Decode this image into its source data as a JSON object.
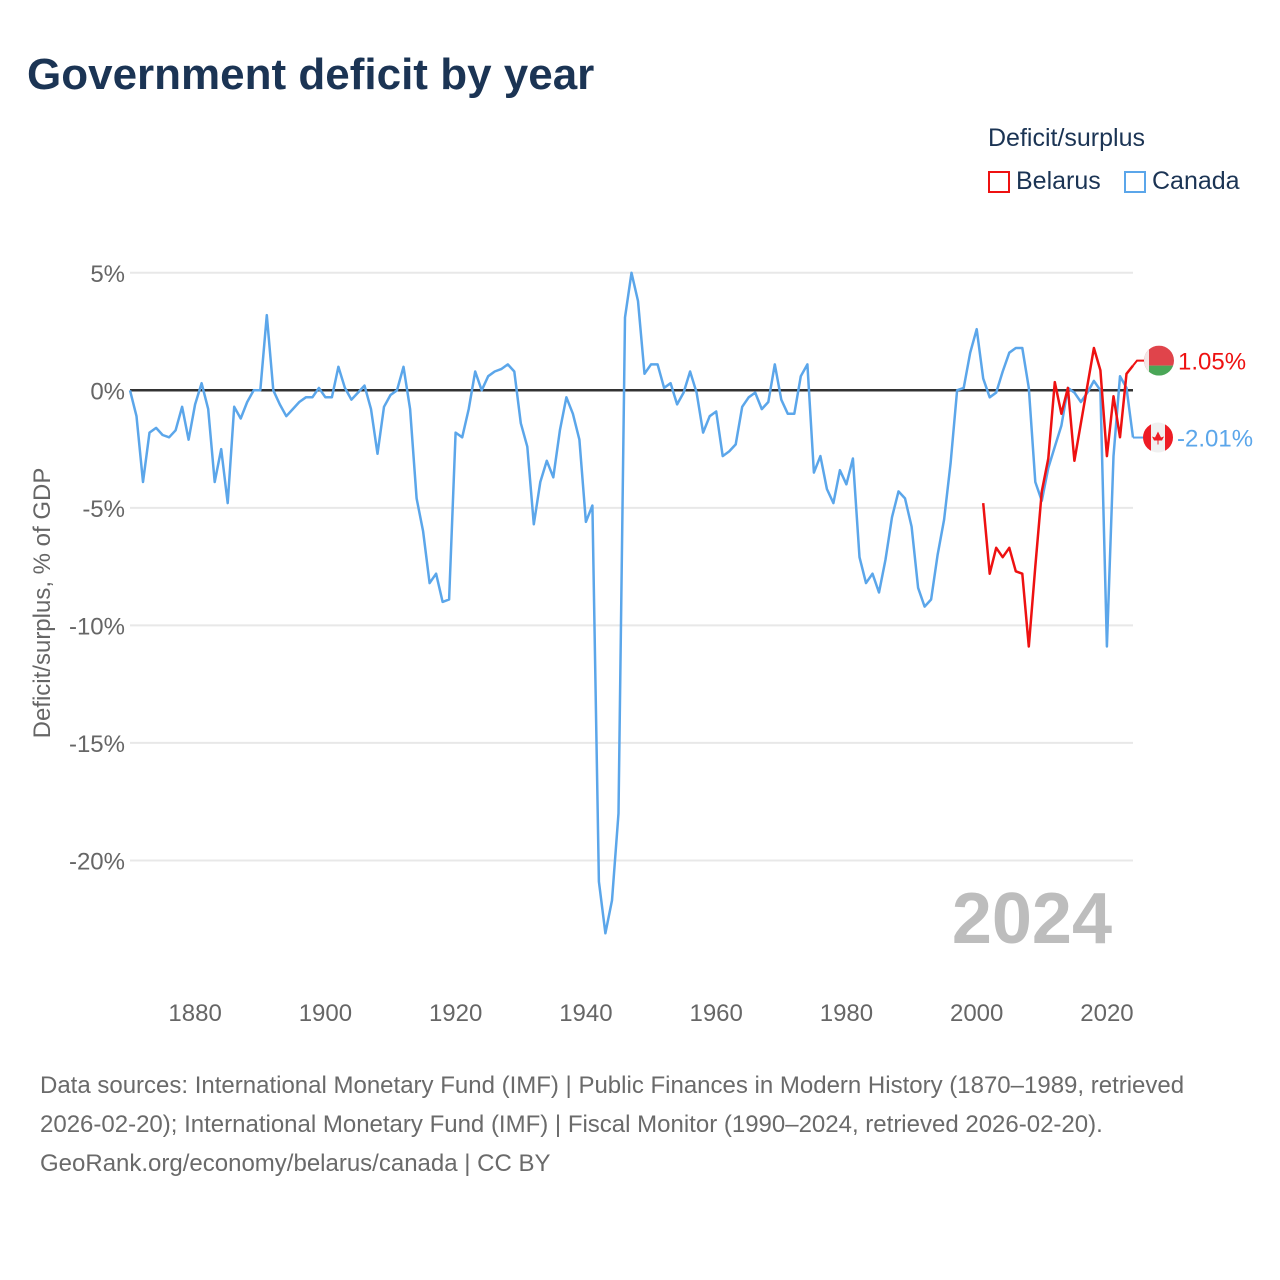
{
  "title": "Government deficit by year",
  "legend": {
    "title": "Deficit/surplus",
    "items": [
      {
        "name": "Belarus",
        "color": "#ee1111"
      },
      {
        "name": "Canada",
        "color": "#5ba6ea"
      }
    ]
  },
  "footer": {
    "sources": "Data sources: International Monetary Fund (IMF) | Public Finances in Modern History (1870–1989, retrieved 2026-02-20); International Monetary Fund (IMF) | Fiscal Monitor (1990–2024, retrieved 2026-02-20).",
    "credit": "GeoRank.org/economy/belarus/canada | CC BY"
  },
  "chart_data": {
    "type": "line",
    "title": "Government deficit by year",
    "xlabel": "",
    "ylabel": "Deficit/surplus, % of GDP",
    "xlim": [
      1870,
      2024
    ],
    "ylim": [
      -25,
      5.5
    ],
    "xticks": [
      1880,
      1900,
      1920,
      1940,
      1960,
      1980,
      2000,
      2020
    ],
    "yticks": [
      5,
      0,
      -5,
      -10,
      -15,
      -20
    ],
    "ytick_labels": [
      "5%",
      "0%",
      "-5%",
      "-10%",
      "-15%",
      "-20%"
    ],
    "current_year_label": "2024",
    "end_labels": {
      "Belarus": "1.05%",
      "Canada": "-2.01%"
    },
    "grid": true,
    "legend_position": "top-right",
    "series": [
      {
        "name": "Canada",
        "start_year": 1870,
        "values": [
          0,
          -1.1,
          -3.9,
          -1.8,
          -1.6,
          -1.9,
          -2.0,
          -1.7,
          -0.7,
          -2.1,
          -0.6,
          0.3,
          -0.8,
          -3.9,
          -2.5,
          -4.8,
          -0.7,
          -1.2,
          -0.5,
          0,
          0,
          3.2,
          0,
          -0.6,
          -1.1,
          -0.8,
          -0.5,
          -0.3,
          -0.3,
          0.1,
          -0.3,
          -0.3,
          1.0,
          0.1,
          -0.4,
          -0.1,
          0.2,
          -0.8,
          -2.7,
          -0.7,
          -0.2,
          0,
          1.0,
          -0.8,
          -4.6,
          -6.0,
          -8.2,
          -7.8,
          -9.0,
          -8.9,
          -1.8,
          -2.0,
          -0.8,
          0.8,
          0.0,
          0.6,
          0.8,
          0.9,
          1.1,
          0.8,
          -1.4,
          -2.4,
          -5.7,
          -3.9,
          -3.0,
          -3.7,
          -1.7,
          -0.3,
          -1.0,
          -2.1,
          -5.6,
          -4.9,
          -20.9,
          -23.1,
          -21.7,
          -18.0,
          3.1,
          5.0,
          3.8,
          0.7,
          1.1,
          1.1,
          0.1,
          0.3,
          -0.6,
          -0.1,
          0.8,
          -0.1,
          -1.8,
          -1.1,
          -0.9,
          -2.8,
          -2.6,
          -2.3,
          -0.7,
          -0.3,
          -0.1,
          -0.8,
          -0.5,
          1.1,
          -0.4,
          -1.0,
          -1.0,
          0.6,
          1.1,
          -3.5,
          -2.8,
          -4.2,
          -4.8,
          -3.4,
          -4.0,
          -2.9,
          -7.1,
          -8.2,
          -7.8,
          -8.6,
          -7.2,
          -5.4,
          -4.3,
          -4.6,
          -5.8,
          -8.4,
          -9.2,
          -8.9,
          -7.0,
          -5.5,
          -3.1,
          0.0,
          0.1,
          1.6,
          2.6,
          0.5,
          -0.3,
          -0.1,
          0.8,
          1.6,
          1.8,
          1.8,
          0.1,
          -3.9,
          -4.7,
          -3.3,
          -2.4,
          -1.5,
          0.1,
          -0.1,
          -0.5,
          -0.1,
          0.4,
          0.0,
          -10.9,
          -2.8,
          0.6,
          0.1,
          -2.01
        ]
      },
      {
        "name": "Belarus",
        "start_year": 2001,
        "values": [
          -4.8,
          -7.8,
          -6.7,
          -7.1,
          -6.7,
          -7.7,
          -7.8,
          -10.9,
          -7.5,
          -4.3,
          -2.9,
          0.35,
          -1.0,
          0.1,
          -3.0,
          -1.4,
          0.2,
          1.8,
          0.85,
          -2.8,
          -0.25,
          -2.0,
          0.7,
          1.05
        ]
      }
    ]
  }
}
